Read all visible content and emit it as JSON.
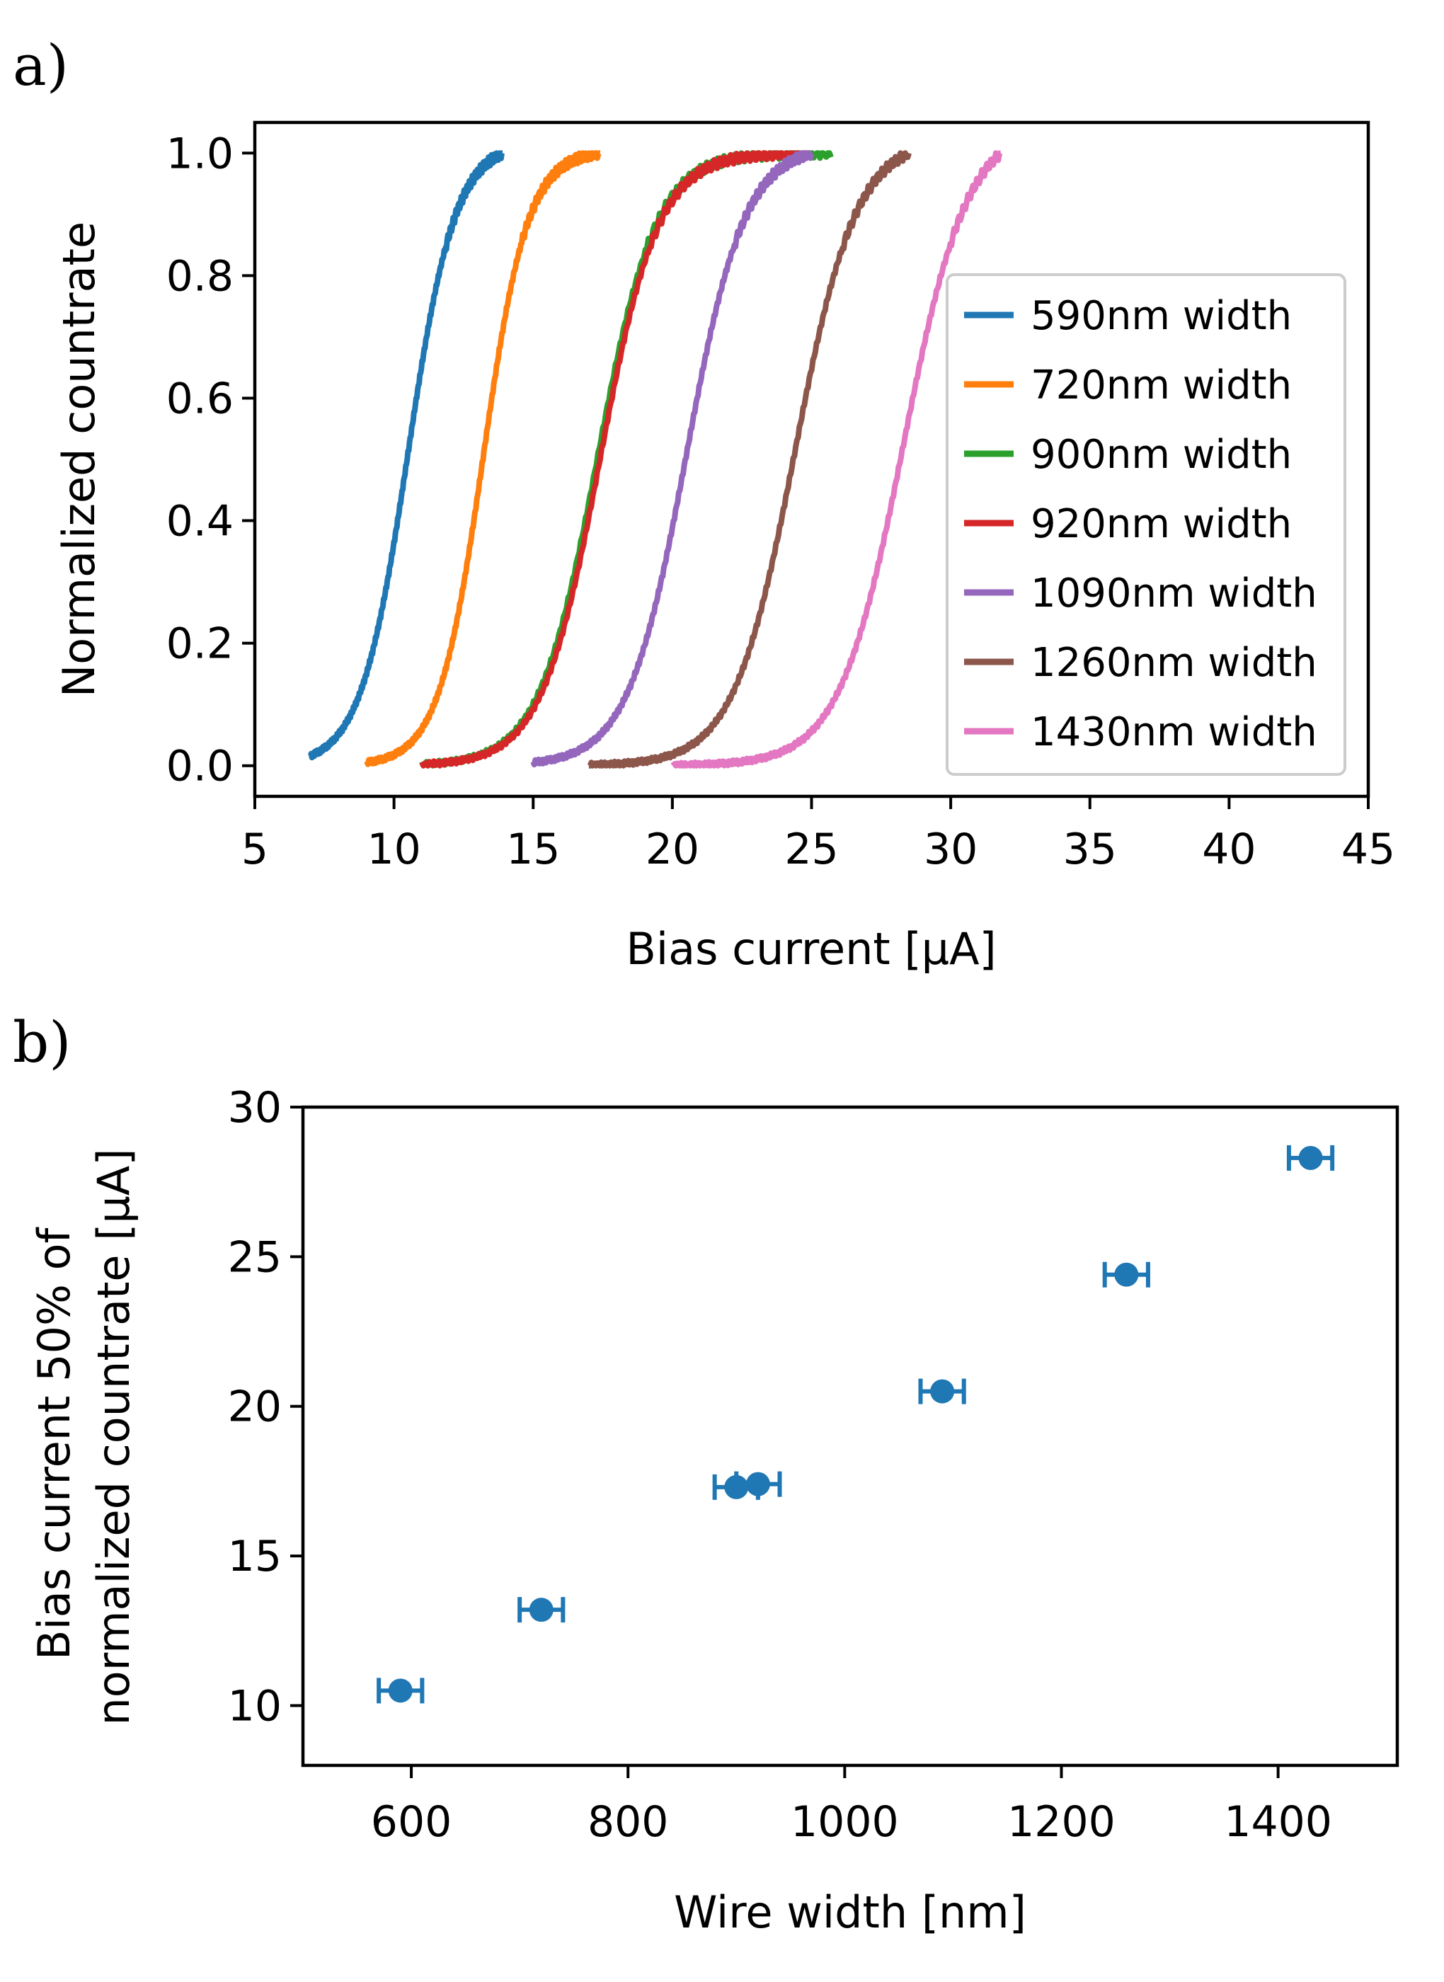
{
  "chart_data": [
    {
      "panel_label": "a)",
      "type": "line",
      "xlabel": "Bias current [µA]",
      "ylabel": "Normalized countrate",
      "xlim": [
        5,
        45
      ],
      "ylim": [
        -0.05,
        1.05
      ],
      "xticks": [
        "5",
        "10",
        "15",
        "20",
        "25",
        "30",
        "35",
        "40",
        "45"
      ],
      "yticks": [
        "0.0",
        "0.2",
        "0.4",
        "0.6",
        "0.8",
        "1.0"
      ],
      "legend_position": "right",
      "series": [
        {
          "name": "590nm width",
          "color": "#1f77b4",
          "x_start": 7.0,
          "x_end": 13.9,
          "midpoint": 10.5,
          "width": 0.85
        },
        {
          "name": "720nm width",
          "color": "#ff7f0e",
          "x_start": 9.0,
          "x_end": 17.4,
          "midpoint": 13.2,
          "width": 0.8
        },
        {
          "name": "900nm width",
          "color": "#2ca02c",
          "x_start": 11.0,
          "x_end": 25.7,
          "midpoint": 17.3,
          "width": 1.05
        },
        {
          "name": "920nm width",
          "color": "#d62728",
          "x_start": 11.0,
          "x_end": 25.0,
          "midpoint": 17.4,
          "width": 1.05
        },
        {
          "name": "1090nm width",
          "color": "#9467bd",
          "x_start": 15.0,
          "x_end": 25.0,
          "midpoint": 20.5,
          "width": 1.05
        },
        {
          "name": "1260nm width",
          "color": "#8c564b",
          "x_start": 17.0,
          "x_end": 28.5,
          "midpoint": 24.4,
          "width": 1.1
        },
        {
          "name": "1430nm width",
          "color": "#e377c2",
          "x_start": 20.0,
          "x_end": 31.8,
          "midpoint": 28.3,
          "width": 1.15
        }
      ]
    },
    {
      "panel_label": "b)",
      "type": "scatter",
      "xlabel": "Wire width [nm]",
      "ylabel": "Bias current 50% of normalized countrate [µA]",
      "xlim": [
        500,
        1510
      ],
      "ylim": [
        8,
        30
      ],
      "xticks": [
        "600",
        "800",
        "1000",
        "1200",
        "1400"
      ],
      "yticks": [
        "10",
        "15",
        "20",
        "25",
        "30"
      ],
      "color": "#1f77b4",
      "points": [
        {
          "x": 590,
          "y": 10.5,
          "xerr": 20
        },
        {
          "x": 720,
          "y": 13.2,
          "xerr": 20
        },
        {
          "x": 900,
          "y": 17.3,
          "xerr": 20
        },
        {
          "x": 920,
          "y": 17.4,
          "xerr": 20
        },
        {
          "x": 1090,
          "y": 20.5,
          "xerr": 20
        },
        {
          "x": 1260,
          "y": 24.4,
          "xerr": 20
        },
        {
          "x": 1430,
          "y": 28.3,
          "xerr": 20
        }
      ]
    }
  ]
}
